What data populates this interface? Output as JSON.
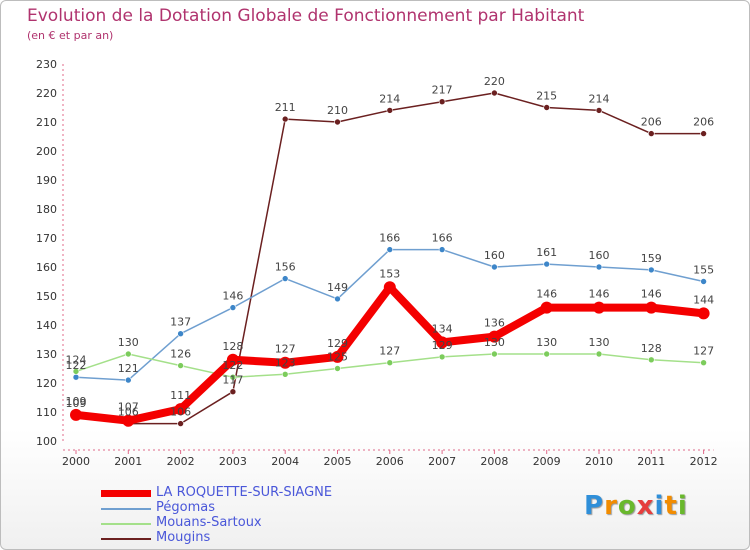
{
  "chart_data": {
    "type": "line",
    "title": "Evolution de la Dotation Globale de Fonctionnement par Habitant",
    "subtitle": "(en € et par an)",
    "xlabel": "",
    "ylabel": "",
    "ylim": [
      100,
      230
    ],
    "yticks": [
      100,
      110,
      120,
      130,
      140,
      150,
      160,
      170,
      180,
      190,
      200,
      210,
      220,
      230
    ],
    "categories": [
      "2000",
      "2001",
      "2002",
      "2003",
      "2004",
      "2005",
      "2006",
      "2007",
      "2008",
      "2009",
      "2010",
      "2011",
      "2012"
    ],
    "series": [
      {
        "name": "Mougins",
        "color": "#6b2020",
        "point_color": "#6b2020",
        "values": [
          109,
          106,
          106,
          117,
          211,
          210,
          214,
          217,
          220,
          215,
          214,
          206,
          206
        ],
        "labels": [
          "109",
          "106",
          "106",
          "117",
          "211",
          "210",
          "214",
          "217",
          "220",
          "215",
          "214",
          "206",
          "206"
        ]
      },
      {
        "name": "Pégomas",
        "color": "#6f9fd0",
        "point_color": "#3d86c9",
        "values": [
          122,
          121,
          137,
          146,
          156,
          149,
          166,
          166,
          160,
          161,
          160,
          159,
          155
        ],
        "labels": [
          "122",
          "121",
          "137",
          "146",
          "156",
          "149",
          "166",
          "166",
          "160",
          "161",
          "160",
          "159",
          "155"
        ]
      },
      {
        "name": "Mouans-Sartoux",
        "color": "#a4e08a",
        "point_color": "#7ccc5c",
        "values": [
          124,
          130,
          126,
          122,
          123,
          125,
          127,
          129,
          130,
          130,
          130,
          128,
          127
        ],
        "labels": [
          "124",
          "130",
          "126",
          "122",
          "123",
          "125",
          "127",
          "129",
          "130",
          "130",
          "130",
          "128",
          "127"
        ]
      },
      {
        "name": "LA ROQUETTE-SUR-SIAGNE",
        "color": "#f40000",
        "point_color": "#f40000",
        "values": [
          109,
          107,
          111,
          128,
          127,
          129,
          153,
          134,
          136,
          146,
          146,
          146,
          144
        ],
        "labels": [
          "109",
          "107",
          "111",
          "128",
          "127",
          "129",
          "153",
          "134",
          "136",
          "146",
          "146",
          "146",
          "144"
        ]
      }
    ],
    "legend_order": [
      "LA ROQUETTE-SUR-SIAGNE",
      "Pégomas",
      "Mouans-Sartoux",
      "Mougins"
    ],
    "grid": false,
    "legend": "bottom-left"
  },
  "logo": {
    "text": "Proxiti",
    "colors": [
      "#2f8fd9",
      "#f28c00",
      "#69b82c",
      "#e63d3d",
      "#2f8fd9",
      "#f28c00",
      "#69b82c"
    ]
  }
}
